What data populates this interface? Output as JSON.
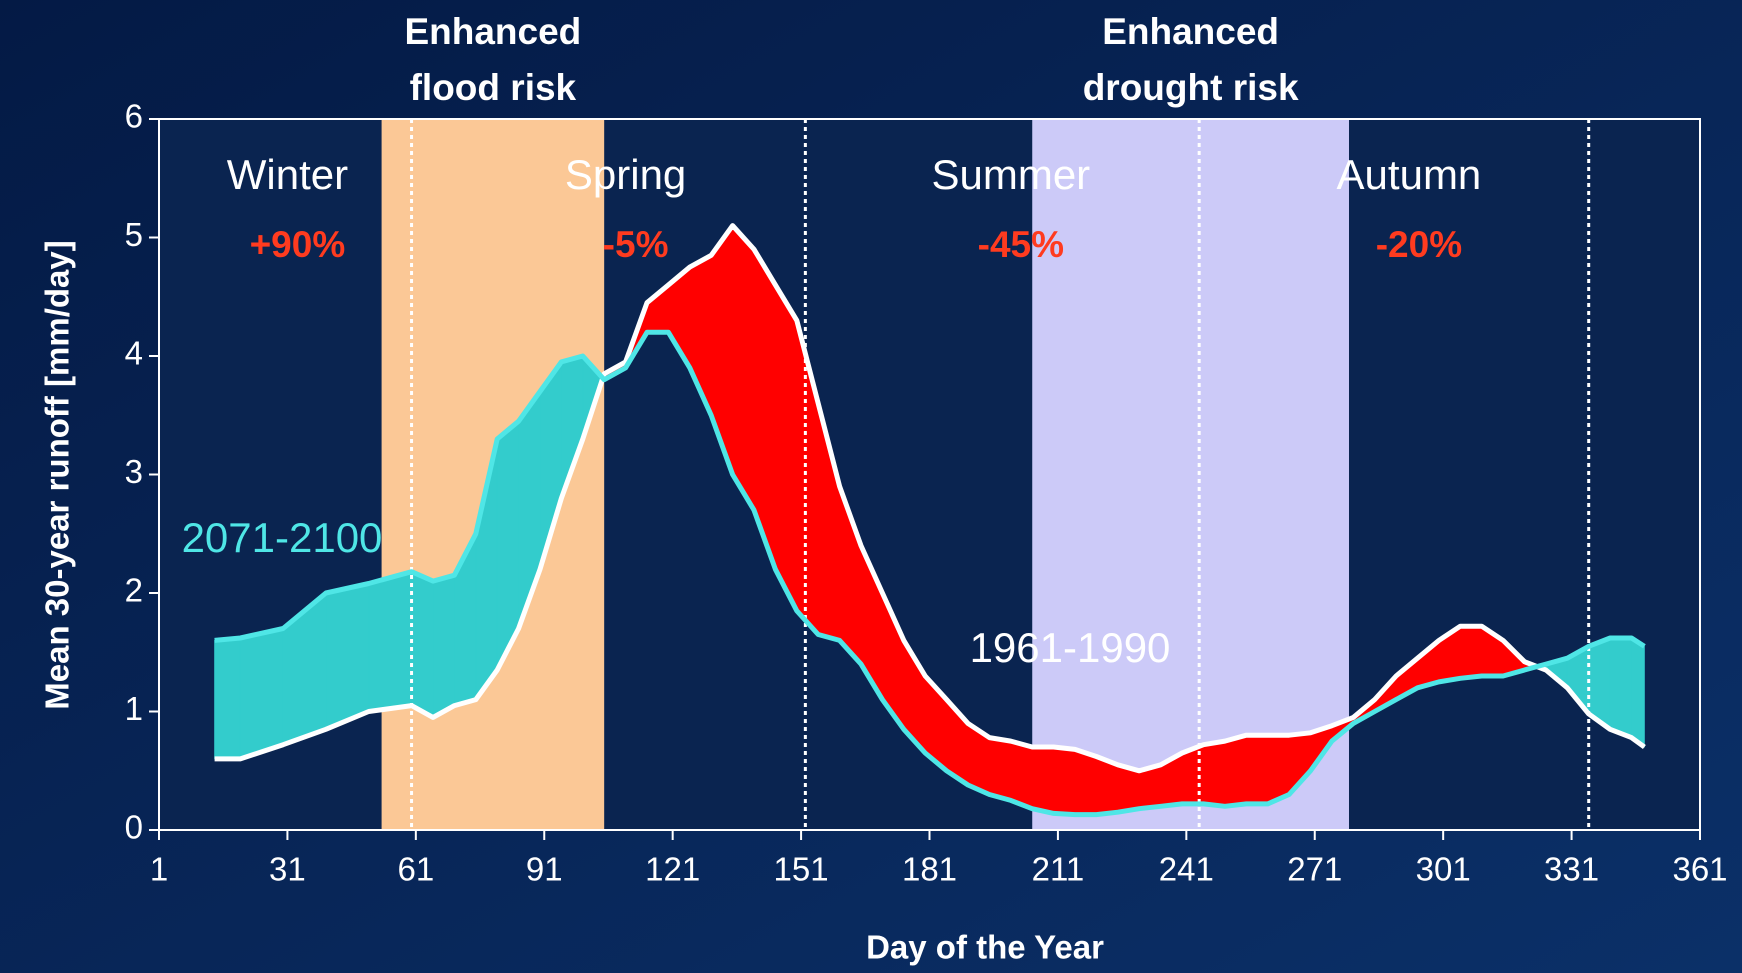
{
  "chart_data": {
    "type": "area-difference",
    "xlabel": "Day of the Year",
    "ylabel": "Mean 30-year runoff [mm/day]",
    "xlim": [
      1,
      361
    ],
    "xticks": [
      1,
      31,
      61,
      91,
      121,
      151,
      181,
      211,
      241,
      271,
      301,
      331,
      361
    ],
    "ylim": [
      0,
      6
    ],
    "yticks": [
      0,
      1,
      2,
      3,
      4,
      5,
      6
    ],
    "x": [
      14,
      20,
      30,
      40,
      50,
      60,
      65,
      70,
      75,
      80,
      85,
      90,
      95,
      100,
      105,
      110,
      115,
      120,
      125,
      130,
      135,
      140,
      145,
      150,
      155,
      160,
      165,
      170,
      175,
      180,
      185,
      190,
      195,
      200,
      205,
      210,
      215,
      220,
      225,
      230,
      235,
      240,
      245,
      250,
      255,
      260,
      265,
      270,
      275,
      280,
      285,
      290,
      295,
      300,
      305,
      310,
      315,
      320,
      325,
      330,
      335,
      340,
      345,
      348
    ],
    "series": [
      {
        "name": "1961-1990",
        "color": "#ffffff",
        "values": [
          0.6,
          0.6,
          0.72,
          0.85,
          1.0,
          1.05,
          0.95,
          1.05,
          1.1,
          1.35,
          1.7,
          2.2,
          2.8,
          3.3,
          3.85,
          3.95,
          4.45,
          4.6,
          4.75,
          4.85,
          5.1,
          4.9,
          4.6,
          4.3,
          3.6,
          2.9,
          2.4,
          2.0,
          1.6,
          1.3,
          1.1,
          0.9,
          0.78,
          0.75,
          0.7,
          0.7,
          0.68,
          0.62,
          0.55,
          0.5,
          0.55,
          0.65,
          0.72,
          0.75,
          0.8,
          0.8,
          0.8,
          0.82,
          0.88,
          0.95,
          1.1,
          1.3,
          1.45,
          1.6,
          1.72,
          1.72,
          1.6,
          1.42,
          1.35,
          1.2,
          0.98,
          0.85,
          0.78,
          0.7
        ]
      },
      {
        "name": "2071-2100",
        "color": "#4fe6e6",
        "values": [
          1.6,
          1.62,
          1.7,
          2.0,
          2.08,
          2.18,
          2.1,
          2.15,
          2.5,
          3.3,
          3.45,
          3.7,
          3.95,
          4.0,
          3.8,
          3.9,
          4.2,
          4.2,
          3.9,
          3.5,
          3.0,
          2.7,
          2.2,
          1.85,
          1.65,
          1.6,
          1.4,
          1.1,
          0.85,
          0.65,
          0.5,
          0.38,
          0.3,
          0.25,
          0.18,
          0.14,
          0.13,
          0.13,
          0.15,
          0.18,
          0.2,
          0.22,
          0.22,
          0.2,
          0.22,
          0.22,
          0.3,
          0.5,
          0.75,
          0.9,
          1.0,
          1.1,
          1.2,
          1.25,
          1.28,
          1.3,
          1.3,
          1.35,
          1.4,
          1.45,
          1.55,
          1.62,
          1.62,
          1.55
        ]
      }
    ],
    "increase_color": "#33cccc",
    "decrease_color": "#ff0000",
    "bands": [
      {
        "label_lines": [
          "Enhanced",
          "flood risk"
        ],
        "start": 53,
        "end": 105,
        "color": "#fbc896"
      },
      {
        "label_lines": [
          "Enhanced",
          "drought risk"
        ],
        "start": 205,
        "end": 279,
        "color": "#cccaf8"
      }
    ],
    "season_lines": [
      60,
      152,
      244,
      335
    ],
    "seasons": [
      {
        "name": "Winter",
        "change": "+90%"
      },
      {
        "name": "Spring",
        "change": "-5%"
      },
      {
        "name": "Summer",
        "change": "-45%"
      },
      {
        "name": "Autumn",
        "change": "-20%"
      }
    ]
  }
}
